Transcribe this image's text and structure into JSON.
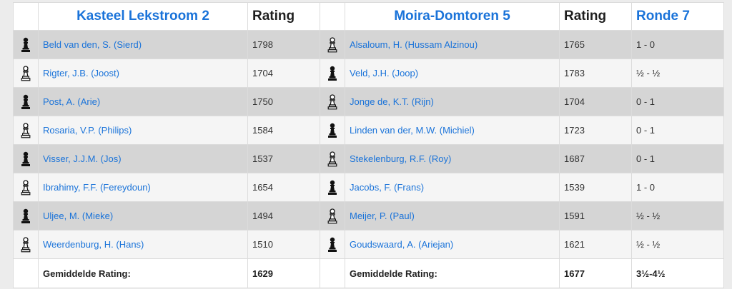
{
  "header": {
    "home_team": "Kasteel Lekstroom 2",
    "home_rating_label": "Rating",
    "away_team": "Moira-Domtoren 5",
    "away_rating_label": "Rating",
    "round_label": "Ronde 7"
  },
  "games": [
    {
      "home_color": "black",
      "home_player": "Beld van den, S. (Sierd)",
      "home_rating": "1798",
      "away_color": "white",
      "away_player": "Alsaloum, H. (Hussam Alzinou)",
      "away_rating": "1765",
      "result": "1 - 0"
    },
    {
      "home_color": "white",
      "home_player": "Rigter, J.B. (Joost)",
      "home_rating": "1704",
      "away_color": "black",
      "away_player": "Veld, J.H. (Joop)",
      "away_rating": "1783",
      "result": "½ - ½"
    },
    {
      "home_color": "black",
      "home_player": "Post, A. (Arie)",
      "home_rating": "1750",
      "away_color": "white",
      "away_player": "Jonge de, K.T. (Rijn)",
      "away_rating": "1704",
      "result": "0 - 1"
    },
    {
      "home_color": "white",
      "home_player": "Rosaria, V.P. (Philips)",
      "home_rating": "1584",
      "away_color": "black",
      "away_player": "Linden van der, M.W. (Michiel)",
      "away_rating": "1723",
      "result": "0 - 1"
    },
    {
      "home_color": "black",
      "home_player": "Visser, J.J.M. (Jos)",
      "home_rating": "1537",
      "away_color": "white",
      "away_player": "Stekelenburg, R.F. (Roy)",
      "away_rating": "1687",
      "result": "0 - 1"
    },
    {
      "home_color": "white",
      "home_player": "Ibrahimy, F.F. (Fereydoun)",
      "home_rating": "1654",
      "away_color": "black",
      "away_player": "Jacobs, F. (Frans)",
      "away_rating": "1539",
      "result": "1 - 0"
    },
    {
      "home_color": "black",
      "home_player": "Uljee, M. (Mieke)",
      "home_rating": "1494",
      "away_color": "white",
      "away_player": "Meijer, P. (Paul)",
      "away_rating": "1591",
      "result": "½ - ½"
    },
    {
      "home_color": "white",
      "home_player": "Weerdenburg, H. (Hans)",
      "home_rating": "1510",
      "away_color": "black",
      "away_player": "Goudswaard, A. (Ariejan)",
      "away_rating": "1621",
      "result": "½ - ½"
    }
  ],
  "footer": {
    "home_avg_label": "Gemiddelde Rating:",
    "home_avg": "1629",
    "away_avg_label": "Gemiddelde Rating:",
    "away_avg": "1677",
    "total_result": "3½-4½"
  },
  "icons": {
    "black": "black-pawn-icon",
    "white": "white-pawn-icon"
  },
  "colors": {
    "link": "#1a73d9",
    "row_dark": "#d5d5d5",
    "row_light": "#f5f5f5"
  }
}
